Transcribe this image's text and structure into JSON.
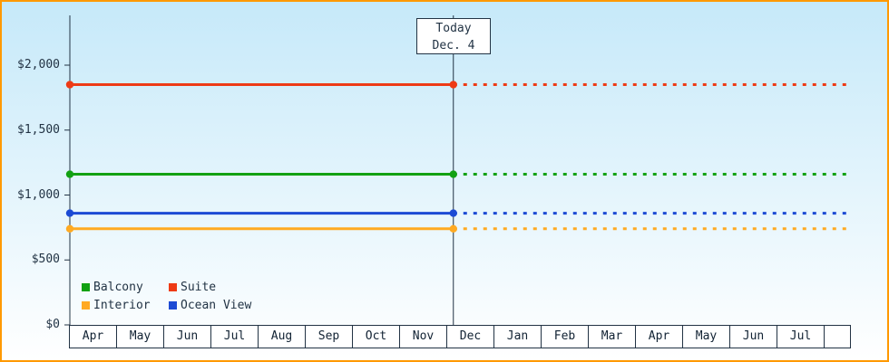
{
  "colors": {
    "frame": "#ff9900",
    "axis": "#223344",
    "background_top": "#c6e9f9",
    "background_bottom": "#ffffff"
  },
  "chart_data": {
    "type": "line",
    "title": "",
    "x_categories": [
      "Apr",
      "May",
      "Jun",
      "Jul",
      "Aug",
      "Sep",
      "Oct",
      "Nov",
      "Dec",
      "Jan",
      "Feb",
      "Mar",
      "Apr",
      "May",
      "Jun",
      "Jul"
    ],
    "y_ticks": [
      "$0",
      "$500",
      "$1,000",
      "$1,500",
      "$2,000"
    ],
    "y_tick_values": [
      0,
      500,
      1000,
      1500,
      2000
    ],
    "ylim": [
      0,
      2400
    ],
    "grid": false,
    "legend_position": "bottom-left",
    "forecast_dashed_after_today": true,
    "today": {
      "label_line1": "Today",
      "label_line2": "Dec. 4",
      "month_index": 8,
      "day_fraction": 0.13
    },
    "series": [
      {
        "name": "Suite",
        "color": "#ee3a15",
        "value": 1850
      },
      {
        "name": "Balcony",
        "color": "#12a112",
        "value": 1160
      },
      {
        "name": "Ocean View",
        "color": "#1c4ad4",
        "value": 860
      },
      {
        "name": "Interior",
        "color": "#ffaa22",
        "value": 740
      }
    ],
    "legend": [
      {
        "name": "Balcony",
        "color": "#12a112"
      },
      {
        "name": "Suite",
        "color": "#ee3a15"
      },
      {
        "name": "Interior",
        "color": "#ffaa22"
      },
      {
        "name": "Ocean View",
        "color": "#1c4ad4"
      }
    ]
  }
}
